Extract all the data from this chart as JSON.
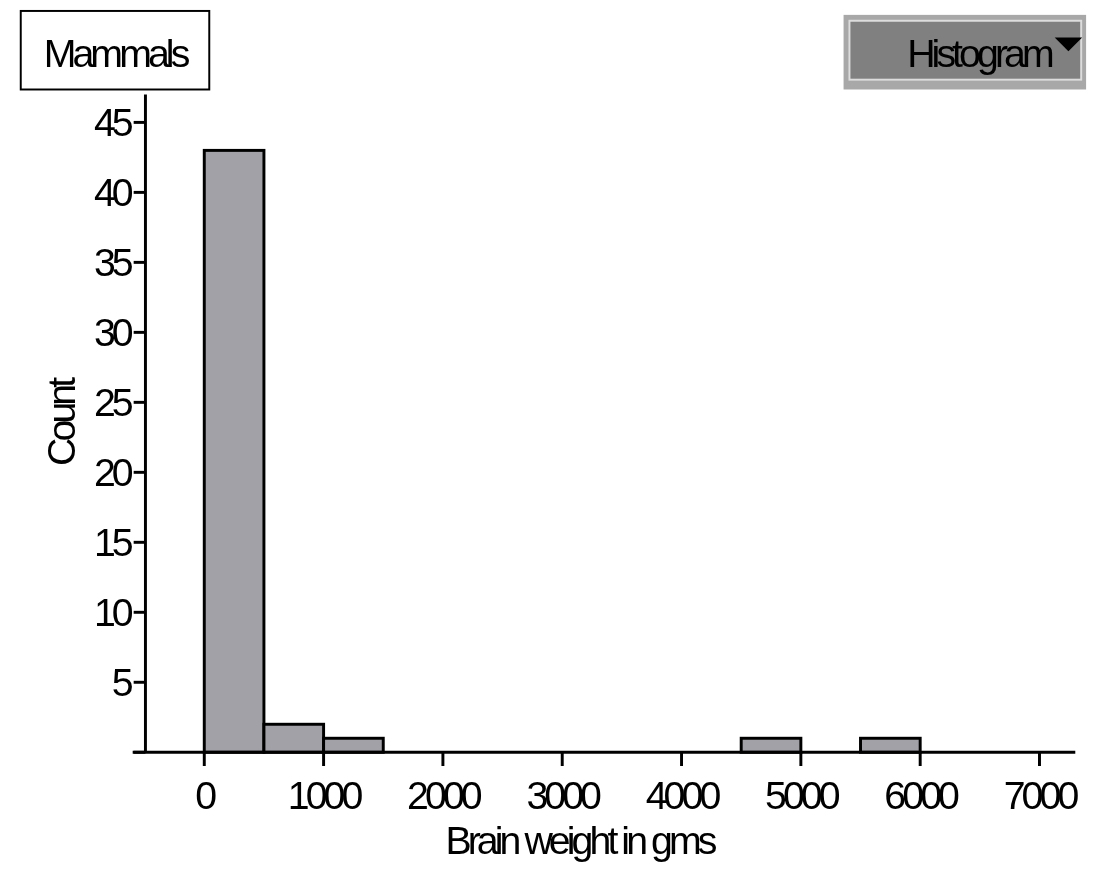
{
  "chart_data": {
    "type": "histogram",
    "title": "Mammals",
    "annotations": [
      "Histogram"
    ],
    "xlabel": "Brain weight in gms",
    "ylabel": "Count",
    "bins": [
      0,
      500,
      1000,
      1500,
      2000,
      2500,
      3000,
      3500,
      4000,
      4500,
      5000,
      5500,
      6000
    ],
    "values": [
      43,
      2,
      1,
      0,
      0,
      0,
      0,
      0,
      0,
      1,
      0,
      1
    ],
    "color": "#a2a1a7",
    "xlim": [
      -600,
      7300
    ],
    "xticks": [
      0,
      1000,
      2000,
      3000,
      4000,
      5000,
      6000,
      7000
    ],
    "ylim": [
      0,
      47
    ],
    "yticks": [
      {
        "value": 0,
        "label": null
      },
      5,
      10,
      15,
      20,
      25,
      30,
      35,
      40,
      45
    ],
    "grid": false
  }
}
